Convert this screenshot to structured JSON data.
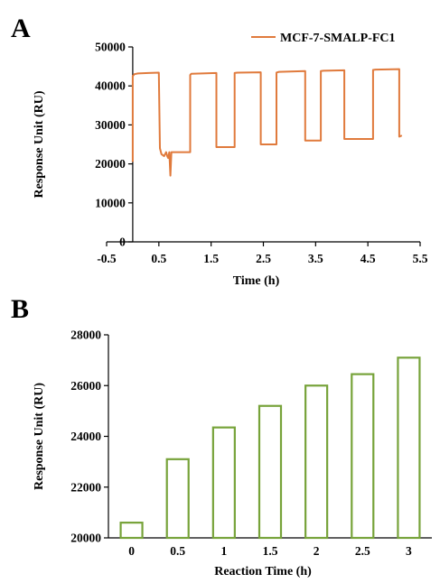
{
  "panels": {
    "a_letter": "A",
    "b_letter": "B"
  },
  "colors": {
    "line_series": "#E07A3C",
    "bar_outline": "#77A33A",
    "axis": "#000000"
  },
  "chart_data": [
    {
      "type": "line",
      "panel": "A",
      "xlabel": "Time (h)",
      "ylabel": "Response Unit (RU)",
      "xlim": [
        -0.5,
        5.5
      ],
      "ylim": [
        0,
        50000
      ],
      "xticks": [
        "-0.5",
        "0.5",
        "1.5",
        "2.5",
        "3.5",
        "4.5",
        "5.5"
      ],
      "yticks": [
        "0",
        "10000",
        "20000",
        "30000",
        "40000",
        "50000"
      ],
      "legend": "top-right",
      "grid": false,
      "series": [
        {
          "name": "MCF-7-SMALP-FC1",
          "x": [
            0.0,
            0.0,
            0.03,
            0.1,
            0.3,
            0.5,
            0.52,
            0.55,
            0.6,
            0.64,
            0.66,
            0.68,
            0.7,
            0.72,
            0.74,
            0.76,
            0.78,
            1.1,
            1.1,
            1.12,
            1.6,
            1.6,
            1.95,
            1.95,
            2.0,
            2.45,
            2.45,
            2.75,
            2.75,
            2.8,
            3.3,
            3.3,
            3.6,
            3.6,
            3.65,
            4.05,
            4.05,
            4.6,
            4.6,
            4.65,
            5.1,
            5.1,
            5.15
          ],
          "y": [
            20500,
            42500,
            43000,
            43200,
            43300,
            43400,
            24000,
            22500,
            22000,
            23000,
            22000,
            21500,
            23000,
            17000,
            23000,
            23000,
            23000,
            23000,
            42800,
            43100,
            43300,
            24300,
            24300,
            43300,
            43400,
            43500,
            25000,
            25000,
            43400,
            43600,
            43800,
            26000,
            26000,
            43800,
            43900,
            44000,
            26400,
            26400,
            44100,
            44200,
            44300,
            27000,
            27300
          ]
        }
      ]
    },
    {
      "type": "bar",
      "panel": "B",
      "xlabel": "Reaction Time (h)",
      "ylabel": "Response Unit (RU)",
      "ylim": [
        20000,
        28000
      ],
      "yticks": [
        "20000",
        "22000",
        "24000",
        "26000",
        "28000"
      ],
      "categories": [
        "0",
        "0.5",
        "1",
        "1.5",
        "2",
        "2.5",
        "3"
      ],
      "values": [
        20600,
        23100,
        24350,
        25200,
        26000,
        26450,
        27100
      ],
      "grid": false
    }
  ]
}
